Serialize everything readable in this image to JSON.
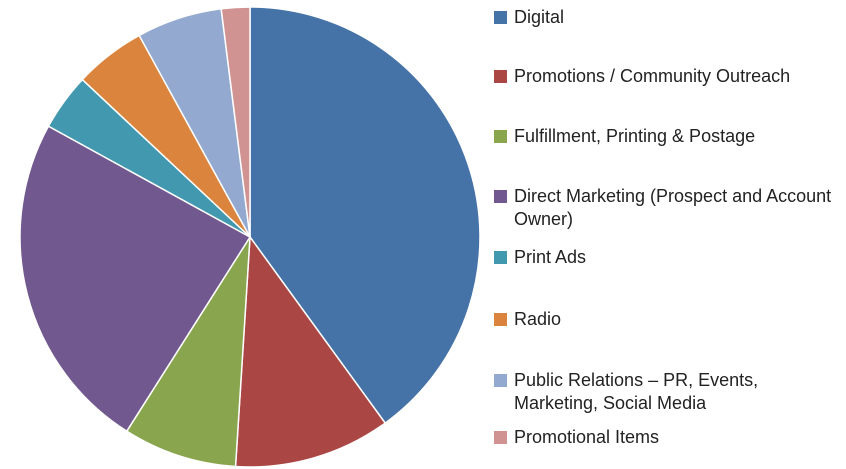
{
  "chart_data": {
    "type": "pie",
    "categories": [
      "Digital",
      "Promotions / Community Outreach",
      "Fulfillment, Printing & Postage",
      "Direct Marketing (Prospect and Account Owner)",
      "Print Ads",
      "Radio",
      "Public Relations – PR, Events, Marketing, Social Media",
      "Promotional Items"
    ],
    "values": [
      40,
      11,
      8,
      24,
      4,
      5,
      6,
      2
    ],
    "colors": [
      "#4572A7",
      "#AA4643",
      "#89A54E",
      "#71588F",
      "#4198AF",
      "#DB843D",
      "#93A9CF",
      "#D19392"
    ],
    "legend": "right"
  }
}
